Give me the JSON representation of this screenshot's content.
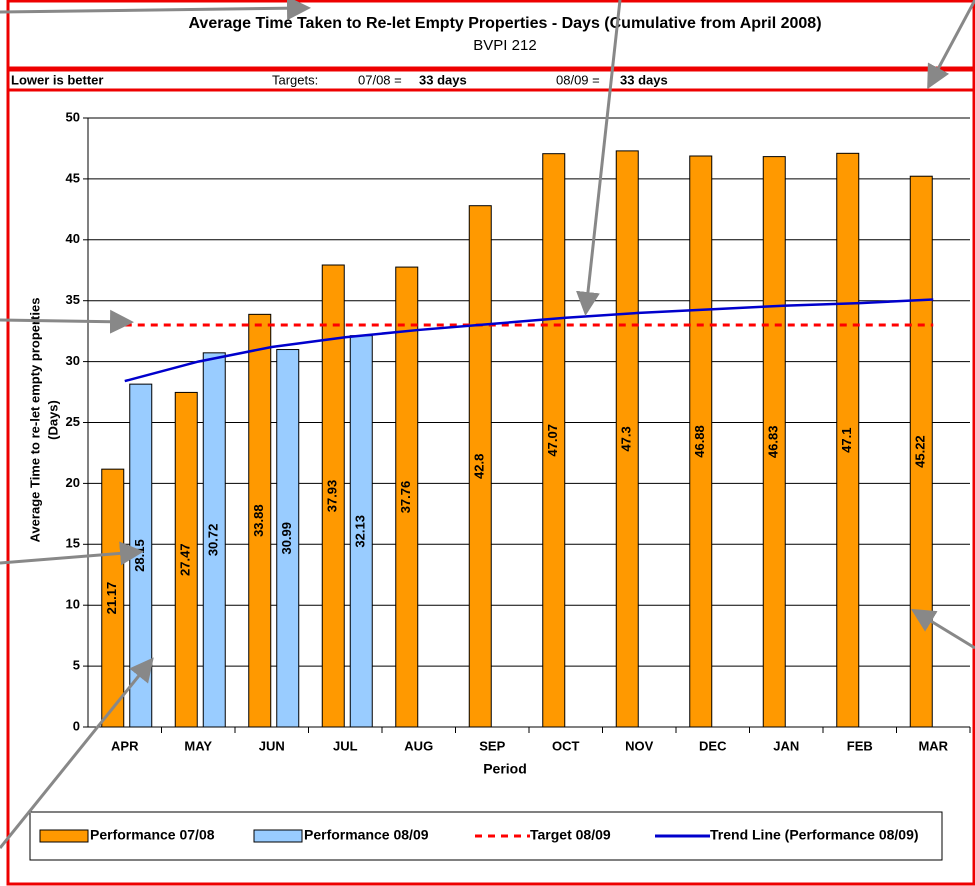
{
  "chart_data": {
    "type": "bar",
    "title": "Average Time Taken to Re-let Empty Properties - Days (Cumulative from April 2008)",
    "subtitle": "BVPI 212",
    "annotations": [
      "Lower is better",
      "Targets:",
      "07/08 =",
      "33 days",
      "08/09 =",
      "33 days"
    ],
    "xlabel": "Period",
    "ylabel": [
      "Average Time to re-let empty properties",
      "(Days)"
    ],
    "categories": [
      "APR",
      "MAY",
      "JUN",
      "JUL",
      "AUG",
      "SEP",
      "OCT",
      "NOV",
      "DEC",
      "JAN",
      "FEB",
      "MAR"
    ],
    "series": [
      {
        "name": "Performance 07/08",
        "color": "#ff9900",
        "kind": "bar",
        "values": [
          21.17,
          27.47,
          33.88,
          37.93,
          37.76,
          42.8,
          47.07,
          47.3,
          46.88,
          46.83,
          47.1,
          45.22
        ]
      },
      {
        "name": "Performance 08/09",
        "color": "#99ccff",
        "kind": "bar",
        "values": [
          28.15,
          30.72,
          30.99,
          32.13,
          null,
          null,
          null,
          null,
          null,
          null,
          null,
          null
        ]
      },
      {
        "name": "Target 08/09",
        "color": "#ff0000",
        "kind": "dashed-line",
        "values": [
          33,
          33,
          33,
          33,
          33,
          33,
          33,
          33,
          33,
          33,
          33,
          33
        ]
      },
      {
        "name": "Trend Line (Performance 08/09)",
        "color": "#0000cc",
        "kind": "line",
        "values": [
          28.4,
          30.0,
          31.2,
          32.0,
          32.6,
          33.1,
          33.6,
          34.0,
          34.3,
          34.6,
          34.8,
          35.1
        ]
      }
    ],
    "ylim": [
      0,
      50
    ],
    "yticks": [
      0,
      5,
      10,
      15,
      20,
      25,
      30,
      35,
      40,
      45,
      50
    ],
    "grid": true,
    "legend": "bottom"
  }
}
